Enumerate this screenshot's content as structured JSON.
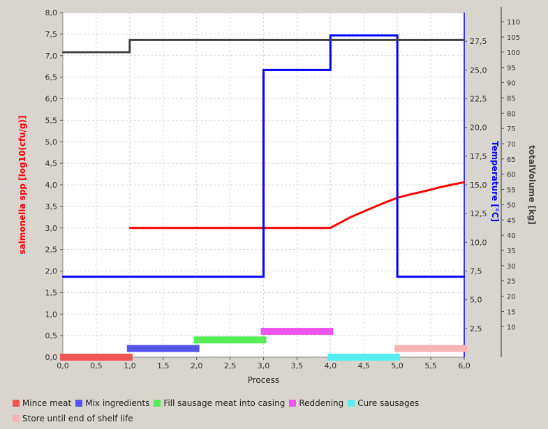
{
  "chart_data": {
    "type": "line",
    "xlabel": "Process",
    "xlim": [
      0,
      6
    ],
    "x_ticks": [
      "0,0",
      "0,5",
      "1,0",
      "1,5",
      "2,0",
      "2,5",
      "3,0",
      "3,5",
      "4,0",
      "4,5",
      "5,0",
      "5,5",
      "6,0"
    ],
    "axes": {
      "salmonella": {
        "label": "salmonella spp [log10(cfu/g)]",
        "color": "#ff0000",
        "lim": [
          0,
          8
        ],
        "ticks": [
          "0,0",
          "0,5",
          "1,0",
          "1,5",
          "2,0",
          "2,5",
          "3,0",
          "3,5",
          "4,0",
          "4,5",
          "5,0",
          "5,5",
          "6,0",
          "6,5",
          "7,0",
          "7,5",
          "8,0"
        ]
      },
      "temperature": {
        "label": "Temperature [°C]",
        "color": "#0000ff",
        "lim": [
          0,
          30
        ],
        "ticks": [
          "2,5",
          "5,0",
          "7,5",
          "10,0",
          "12,5",
          "15,0",
          "17,5",
          "20,0",
          "22,5",
          "25,0",
          "27,5"
        ]
      },
      "volume": {
        "label": "totalVolume [kg]",
        "color": "#404040",
        "lim": [
          0,
          113
        ],
        "ticks": [
          "10",
          "15",
          "20",
          "25",
          "30",
          "35",
          "40",
          "45",
          "50",
          "55",
          "60",
          "65",
          "70",
          "75",
          "80",
          "85",
          "90",
          "95",
          "100",
          "105",
          "110"
        ]
      }
    },
    "series": [
      {
        "axis": "salmonella",
        "color": "#ff0000",
        "x": [
          1.0,
          4.0,
          4.3,
          4.6,
          4.8,
          5.0,
          5.2,
          5.4,
          5.6,
          5.8,
          6.0
        ],
        "y": [
          3.0,
          3.0,
          3.25,
          3.45,
          3.58,
          3.7,
          3.78,
          3.85,
          3.93,
          4.0,
          4.06
        ]
      },
      {
        "axis": "temperature",
        "color": "#0000ff",
        "x": [
          0,
          3.0,
          3.0,
          4.0,
          4.0,
          5.0,
          5.0,
          6.0
        ],
        "y": [
          7,
          7,
          25,
          25,
          28,
          28,
          7,
          7
        ]
      },
      {
        "axis": "volume",
        "color": "#404040",
        "x": [
          0,
          1.0,
          1.0,
          6.0
        ],
        "y": [
          100,
          100,
          104,
          104
        ]
      }
    ],
    "processes": [
      {
        "name": "Mince meat",
        "color": "#ee5555",
        "start": 0.0,
        "end": 1.0,
        "level": 0.0
      },
      {
        "name": "Mix ingredients",
        "color": "#5555ee",
        "start": 1.0,
        "end": 2.0,
        "level": 0.2
      },
      {
        "name": "Fill sausage meat into casing",
        "color": "#55ee55",
        "start": 2.0,
        "end": 3.0,
        "level": 0.4
      },
      {
        "name": "Reddening",
        "color": "#ee55ee",
        "start": 3.0,
        "end": 4.0,
        "level": 0.6
      },
      {
        "name": "Cure sausages",
        "color": "#55eeee",
        "start": 4.0,
        "end": 5.0,
        "level": 0.0
      },
      {
        "name": "Store until end of shelf life",
        "color": "#f4b4b4",
        "start": 5.0,
        "end": 6.0,
        "level": 0.2
      }
    ]
  }
}
